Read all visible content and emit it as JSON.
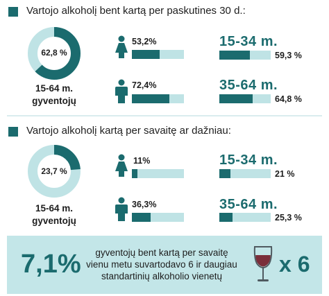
{
  "section1": {
    "title": "Vartojo alkoholį bent kartą per paskutines 30 d.:",
    "donut_value": "62,8 %",
    "donut_fraction": 0.628,
    "population_label_line1": "15-64 m.",
    "population_label_line2": "gyventojų",
    "female_pct": "53,2%",
    "female_fraction": 0.532,
    "male_pct": "72,4%",
    "male_fraction": 0.724,
    "age1_label": "15-34 m.",
    "age1_pct": "59,3 %",
    "age1_fraction": 0.593,
    "age2_label": "35-64 m.",
    "age2_pct": "64,8 %",
    "age2_fraction": 0.648
  },
  "section2": {
    "title": "Vartojo alkoholį kartą per savaitę ar dažniau:",
    "donut_value": "23,7 %",
    "donut_fraction": 0.237,
    "population_label_line1": "15-64 m.",
    "population_label_line2": "gyventojų",
    "female_pct": "11%",
    "female_fraction": 0.11,
    "male_pct": "36,3%",
    "male_fraction": 0.363,
    "age1_label": "15-34 m.",
    "age1_pct": "21 %",
    "age1_fraction": 0.21,
    "age2_label": "35-64 m.",
    "age2_pct": "25,3 %",
    "age2_fraction": 0.253
  },
  "bottom": {
    "big_value": "7,1%",
    "text_line1": "gyventojų bent kartą per savaitę",
    "text_line2": "vienu metu suvartodavo 6 ir daugiau",
    "text_line3": "standartinių alkoholio vienetų",
    "multiplier": "x 6",
    "icon": "wine-glass-icon"
  },
  "colors": {
    "accent": "#1b6b6e",
    "light": "#bfe3e5",
    "box": "#c3e6e8"
  }
}
